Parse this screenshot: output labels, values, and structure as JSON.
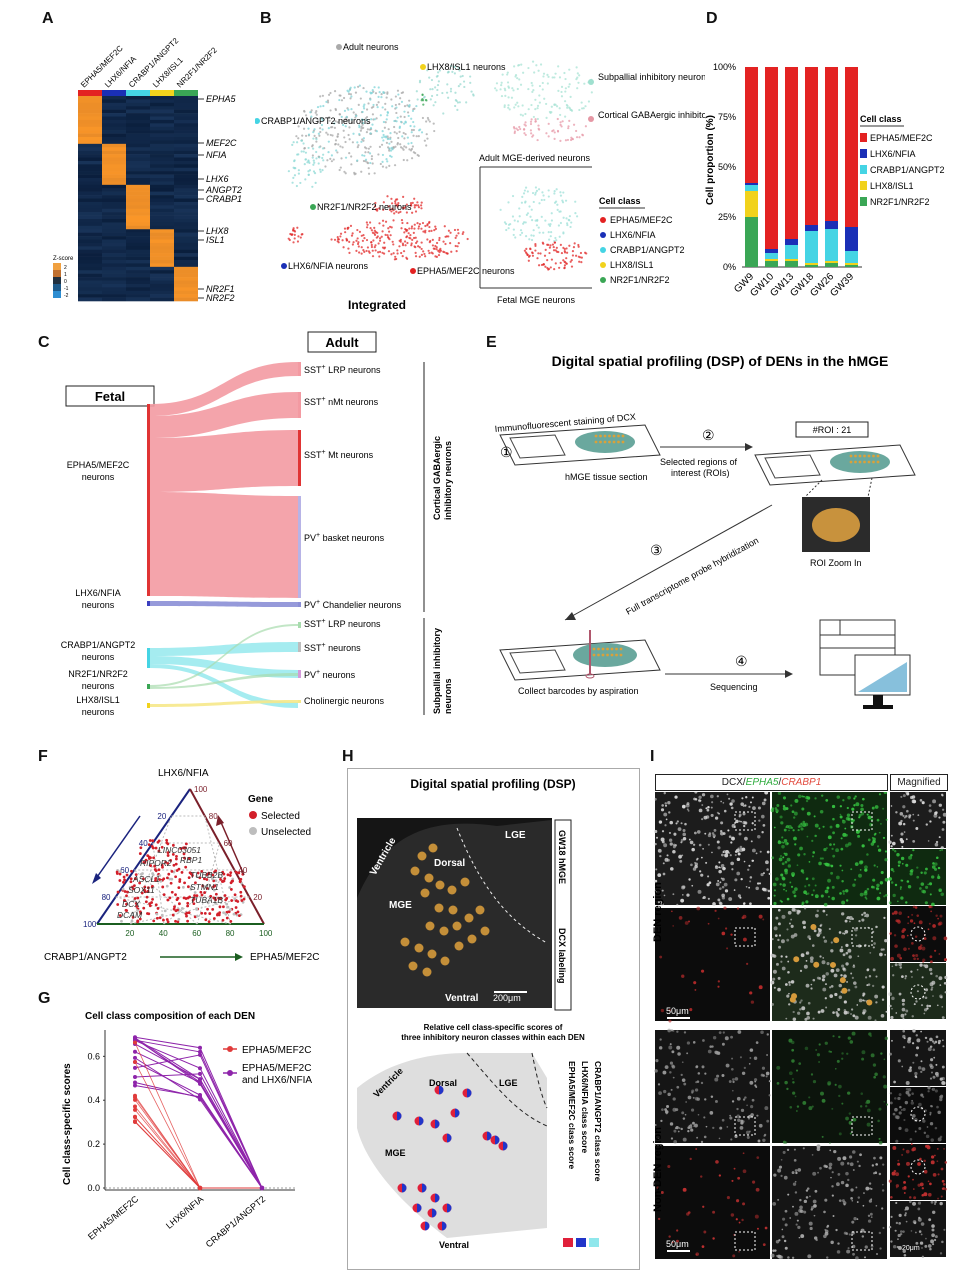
{
  "panel_letters": {
    "A": "A",
    "B": "B",
    "C": "C",
    "D": "D",
    "E": "E",
    "F": "F",
    "G": "G",
    "H": "H",
    "I": "I"
  },
  "panelA": {
    "columns": [
      "EPHA5/MEF2C",
      "LHX6/NFIA",
      "CRABP1/ANGPT2",
      "LHX8/ISL1",
      "NR2F1/NR2F2"
    ],
    "column_colors": [
      "#e32222",
      "#1a2fb6",
      "#45d4e4",
      "#f1d21c",
      "#3aa655"
    ],
    "genes": [
      "EPHA5",
      "MEF2C",
      "NFIA",
      "LHX6",
      "ANGPT2",
      "CRABP1",
      "LHX8",
      "ISL1",
      "NR2F1",
      "NR2F2"
    ],
    "legend_title": "Z-score",
    "legend_ticks": [
      "2",
      "1",
      "0",
      "-1",
      "-2"
    ]
  },
  "panelB": {
    "title_integrated": "Integrated",
    "labels": [
      "Adult neurons",
      "LHX8/ISL1 neurons",
      "CRABP1/ANGPT2 neurons",
      "NR2F1/NR2F2 neurons",
      "LHX6/NFIA neurons",
      "EPHA5/MEF2C neurons"
    ],
    "adult_legend": [
      "Subpallial inhibitory neurons",
      "Cortical GABAergic inhibitory neurons"
    ],
    "adult_title": "Adult MGE-derived neurons",
    "fetal_title": "Fetal MGE neurons",
    "legend_title": "Cell class",
    "legend": [
      {
        "name": "EPHA5/MEF2C",
        "color": "#e32222"
      },
      {
        "name": "LHX6/NFIA",
        "color": "#1a2fb6"
      },
      {
        "name": "CRABP1/ANGPT2",
        "color": "#45d4e4"
      },
      {
        "name": "LHX8/ISL1",
        "color": "#f1d21c"
      },
      {
        "name": "NR2F1/NR2F2",
        "color": "#3aa655"
      }
    ]
  },
  "chart_data": {
    "type": "bar",
    "ylabel": "Cell proportion (%)",
    "yticks": [
      "0%",
      "25%",
      "50%",
      "75%",
      "100%"
    ],
    "ylim": [
      0,
      100
    ],
    "categories": [
      "GW9",
      "GW10",
      "GW13",
      "GW18",
      "GW26",
      "GW39"
    ],
    "legend_title": "Cell class",
    "series": [
      {
        "name": "NR2F1/NR2F2",
        "color": "#3aa655",
        "values": [
          25,
          3,
          3,
          1,
          2,
          1
        ]
      },
      {
        "name": "LHX8/ISL1",
        "color": "#f1d21c",
        "values": [
          13,
          1,
          1,
          1,
          1,
          1
        ]
      },
      {
        "name": "CRABP1/ANGPT2",
        "color": "#45d4e4",
        "values": [
          3,
          3,
          7,
          16,
          16,
          6
        ]
      },
      {
        "name": "LHX6/NFIA",
        "color": "#1a2fb6",
        "values": [
          1,
          2,
          3,
          3,
          4,
          12
        ]
      },
      {
        "name": "EPHA5/MEF2C",
        "color": "#e32222",
        "values": [
          58,
          91,
          86,
          79,
          77,
          80
        ]
      }
    ]
  },
  "panelC": {
    "fetal": "Fetal",
    "adult": "Adult",
    "fetal_nodes": [
      "EPHA5/MEF2C neurons",
      "LHX6/NFIA neurons",
      "CRABP1/ANGPT2 neurons",
      "NR2F1/NR2F2 neurons",
      "LHX8/ISL1 neurons"
    ],
    "adult_nodes": [
      "SST+ LRP neurons",
      "SST+ nMt neurons",
      "SST+ Mt neurons",
      "PV+ basket neurons",
      "PV+ Chandelier neurons",
      "SST+ LRP neurons",
      "SST+ neurons",
      "PV+ neurons",
      "Cholinergic neurons"
    ],
    "group_cortical": "Cortical GABAergic inhibitory neurons",
    "group_subpallial": "Subpallial inhibitory neurons"
  },
  "panelE": {
    "title": "Digital spatial profiling (DSP) of DENs in the hMGE",
    "step1": "Immunofluorescent staining of DCX",
    "step1b": "hMGE tissue section",
    "step2": "Selected regions of interest (ROIs)",
    "roi": "#ROI : 21",
    "zoom": "ROI Zoom In",
    "step3": "Full transcriptome probe hybridization",
    "step4a": "Collect  barcodes by aspiration",
    "step4b": "Sequencing",
    "circled": [
      "①",
      "②",
      "③",
      "④"
    ]
  },
  "panelF": {
    "top": "LHX6/NFIA",
    "left": "CRABP1/ANGPT2",
    "right": "EPHA5/MEF2C",
    "ticks": [
      "20",
      "40",
      "60",
      "80",
      "100"
    ],
    "legend_title": "Gene",
    "legend": [
      "Selected",
      "Unselected"
    ],
    "genes": [
      "LINC03051",
      "RBP1",
      "RIPOR2",
      "TUBB2B",
      "STMN1",
      "TUBA1B",
      "ASCL1",
      "SOX11",
      "DCX",
      "DCAM"
    ]
  },
  "panelG": {
    "title": "Cell class composition of each DEN",
    "ylabel": "Cell class-specific scores",
    "yticks": [
      "0.0",
      "0.2",
      "0.4",
      "0.6"
    ],
    "categories": [
      "EPHA5/MEF2C",
      "LHX6/NFIA",
      "CRABP1/ANGPT2"
    ],
    "legend": [
      "EPHA5/MEF2C",
      "EPHA5/MEF2C and LHX6/NFIA"
    ]
  },
  "panelH": {
    "title": "Digital spatial profiling (DSP)",
    "labels": [
      "LGE",
      "Dorsal",
      "Ventricle",
      "MGE",
      "Ventral"
    ],
    "side1": "GW18 hMGE",
    "side2": "DCX labeling",
    "scale": "200μm",
    "caption": "Relative cell class-specific scores of three inhibitory neuron classes within each DEN",
    "schematic_labels": [
      "Ventricle",
      "Dorsal",
      "LGE",
      "MGE",
      "Ventral"
    ],
    "legend": [
      "EPHA5/MEF2C class score",
      "LHX6/NFIA class score",
      "CRABP1/ANGPT2 class score"
    ]
  },
  "panelI": {
    "header_dcx": "DCX/",
    "header_epha5": "EPHA5",
    "header_sep": "/",
    "header_crabp1": "CRABP1",
    "header_mag": "Magnified",
    "row1": "DEN region",
    "row2": "Non-DEN region",
    "scale1": "50μm",
    "scale2": "50μm",
    "scale3": "20μm"
  }
}
